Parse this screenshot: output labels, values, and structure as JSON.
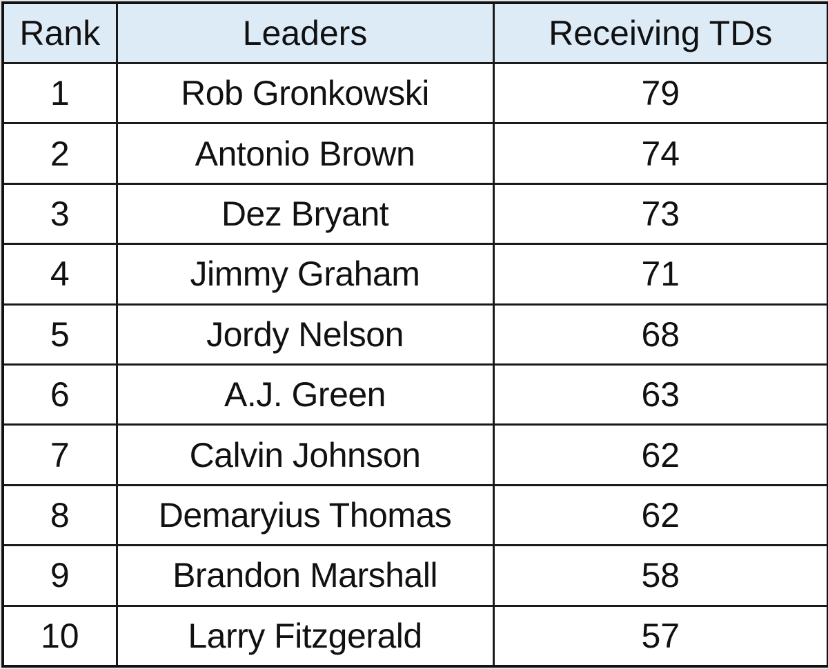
{
  "table": {
    "header_fill": "#ddebf7",
    "border_color": "#1a1a1a",
    "columns": [
      "Rank",
      "Leaders",
      "Receiving TDs"
    ],
    "rows": [
      {
        "rank": "1",
        "name": "Rob Gronkowski",
        "tds": "79"
      },
      {
        "rank": "2",
        "name": "Antonio Brown",
        "tds": "74"
      },
      {
        "rank": "3",
        "name": "Dez Bryant",
        "tds": "73"
      },
      {
        "rank": "4",
        "name": "Jimmy Graham",
        "tds": "71"
      },
      {
        "rank": "5",
        "name": "Jordy Nelson",
        "tds": "68"
      },
      {
        "rank": "6",
        "name": "A.J. Green",
        "tds": "63"
      },
      {
        "rank": "7",
        "name": "Calvin Johnson",
        "tds": "62"
      },
      {
        "rank": "8",
        "name": "Demaryius Thomas",
        "tds": "62"
      },
      {
        "rank": "9",
        "name": "Brandon Marshall",
        "tds": "58"
      },
      {
        "rank": "10",
        "name": "Larry Fitzgerald",
        "tds": "57"
      }
    ]
  }
}
